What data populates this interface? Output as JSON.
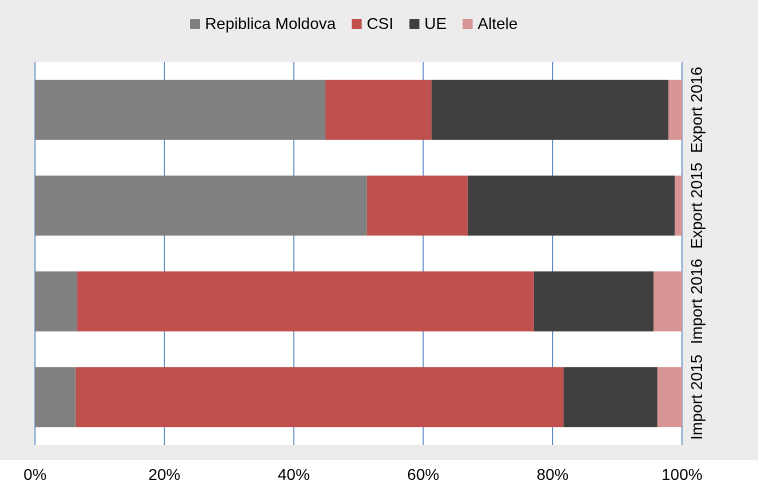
{
  "chart_data": {
    "type": "stacked_barh",
    "categories": [
      "Export 2016",
      "Export 2015",
      "Import 2016",
      "Import 2015"
    ],
    "series": [
      {
        "name": "Repiblica Moldova",
        "color": "#808080",
        "values": [
          44.9,
          51.3,
          6.5,
          6.3
        ]
      },
      {
        "name": "CSI",
        "color": "#c0504d",
        "values": [
          16.4,
          15.6,
          70.6,
          75.4
        ]
      },
      {
        "name": "UE",
        "color": "#404040",
        "values": [
          36.6,
          32.0,
          18.5,
          14.5
        ]
      },
      {
        "name": "Altele",
        "color": "#d99594",
        "values": [
          2.1,
          1.1,
          4.4,
          3.8
        ]
      }
    ],
    "xlim": [
      0,
      100
    ],
    "xticks": [
      {
        "value": 0,
        "label": "0%"
      },
      {
        "value": 20,
        "label": "20%"
      },
      {
        "value": 40,
        "label": "40%"
      },
      {
        "value": 60,
        "label": "60%"
      },
      {
        "value": 80,
        "label": "80%"
      },
      {
        "value": 100,
        "label": "100%"
      }
    ],
    "grid": true,
    "legend": "top"
  }
}
